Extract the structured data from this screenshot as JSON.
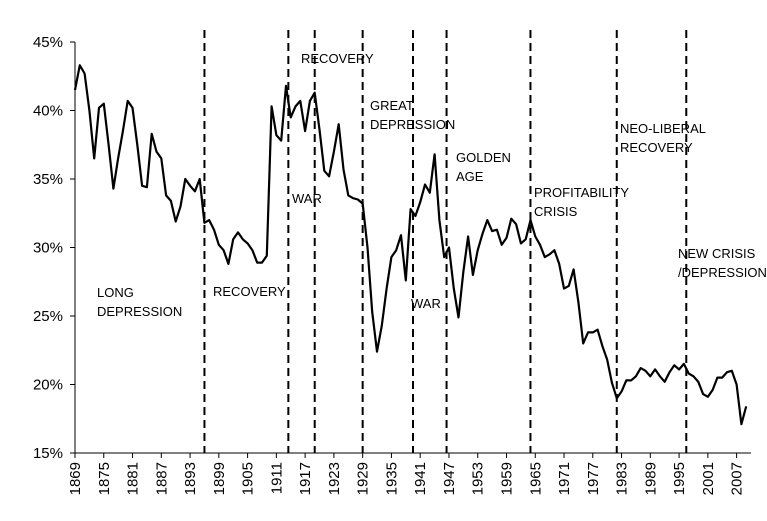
{
  "chart_data": {
    "type": "line",
    "x": [
      1869,
      1870,
      1871,
      1872,
      1873,
      1874,
      1875,
      1876,
      1877,
      1878,
      1879,
      1880,
      1881,
      1882,
      1883,
      1884,
      1885,
      1886,
      1887,
      1888,
      1889,
      1890,
      1891,
      1892,
      1893,
      1894,
      1895,
      1896,
      1897,
      1898,
      1899,
      1900,
      1901,
      1902,
      1903,
      1904,
      1905,
      1906,
      1907,
      1908,
      1909,
      1910,
      1911,
      1912,
      1913,
      1914,
      1915,
      1916,
      1917,
      1918,
      1919,
      1920,
      1921,
      1922,
      1923,
      1924,
      1925,
      1926,
      1927,
      1928,
      1929,
      1930,
      1931,
      1932,
      1933,
      1934,
      1935,
      1936,
      1937,
      1938,
      1939,
      1940,
      1941,
      1942,
      1943,
      1944,
      1945,
      1946,
      1947,
      1948,
      1949,
      1950,
      1951,
      1952,
      1953,
      1954,
      1955,
      1956,
      1957,
      1958,
      1959,
      1960,
      1961,
      1962,
      1963,
      1964,
      1965,
      1966,
      1967,
      1968,
      1969,
      1970,
      1971,
      1972,
      1973,
      1974,
      1975,
      1976,
      1977,
      1978,
      1979,
      1980,
      1981,
      1982,
      1983,
      1984,
      1985,
      1986,
      1987,
      1988,
      1989,
      1990,
      1991,
      1992,
      1993,
      1994,
      1995,
      1996,
      1997,
      1998,
      1999,
      2000,
      2001,
      2002,
      2003,
      2004,
      2005,
      2006,
      2007,
      2008,
      2009
    ],
    "values": [
      41.5,
      43.3,
      42.7,
      40,
      36.5,
      40.2,
      40.5,
      37.5,
      34.3,
      36.5,
      38.5,
      40.7,
      40.2,
      37.5,
      34.5,
      34.4,
      38.3,
      37,
      36.5,
      33.8,
      33.4,
      31.9,
      33,
      35,
      34.5,
      34.1,
      35,
      31.8,
      32,
      31.3,
      30.2,
      29.8,
      28.8,
      30.6,
      31.1,
      30.6,
      30.3,
      29.8,
      28.9,
      28.9,
      29.4,
      40.3,
      38.2,
      37.8,
      41.8,
      39.5,
      40.3,
      40.7,
      38.5,
      40.7,
      41.3,
      38.6,
      35.6,
      35.2,
      37,
      39,
      35.7,
      33.8,
      33.6,
      33.5,
      33.2,
      30,
      25.3,
      22.4,
      24.3,
      27,
      29.3,
      29.8,
      30.9,
      27.6,
      32.8,
      32.3,
      33.3,
      34.6,
      34,
      36.8,
      32,
      29.3,
      30,
      27,
      24.9,
      28.2,
      30.8,
      28,
      29.8,
      31,
      32,
      31.2,
      31.3,
      30.2,
      30.7,
      32.1,
      31.7,
      30.3,
      30.6,
      32,
      30.8,
      30.2,
      29.3,
      29.5,
      29.8,
      28.8,
      27,
      27.2,
      28.4,
      26,
      23,
      23.8,
      23.8,
      24,
      22.8,
      21.8,
      20.1,
      19,
      19.5,
      20.3,
      20.3,
      20.6,
      21.2,
      21,
      20.6,
      21.1,
      20.6,
      20.2,
      20.9,
      21.4,
      21.1,
      21.5,
      20.8,
      20.6,
      20.2,
      19.3,
      19.1,
      19.6,
      20.5,
      20.5,
      20.9,
      21,
      20,
      17.1,
      18.4
    ],
    "color": "#000000",
    "xlim": [
      1869,
      2010
    ],
    "xticks": [
      1869,
      1875,
      1881,
      1887,
      1893,
      1899,
      1905,
      1911,
      1917,
      1923,
      1929,
      1935,
      1941,
      1947,
      1953,
      1959,
      1965,
      1971,
      1977,
      1983,
      1989,
      1995,
      2001,
      2007
    ],
    "ylim": [
      15,
      45
    ],
    "yticks": [
      {
        "value": 15,
        "label": "15%"
      },
      {
        "value": 20,
        "label": "20%"
      },
      {
        "value": 25,
        "label": "25%"
      },
      {
        "value": 30,
        "label": "30%"
      },
      {
        "value": 35,
        "label": "35%"
      },
      {
        "value": 40,
        "label": "40%"
      },
      {
        "value": 45,
        "label": "45%"
      }
    ],
    "dividers": [
      1896,
      1913.5,
      1919,
      1929,
      1939.5,
      1946.5,
      1964,
      1982,
      1996.5
    ],
    "annotations": [
      {
        "lines": [
          "LONG",
          "DEPRESSION"
        ]
      },
      {
        "lines": [
          "RECOVERY"
        ]
      },
      {
        "lines": [
          "WAR"
        ]
      },
      {
        "lines": [
          "RECOVERY"
        ]
      },
      {
        "lines": [
          "GREAT",
          "DEPRESSION"
        ]
      },
      {
        "lines": [
          "WAR"
        ]
      },
      {
        "lines": [
          "GOLDEN",
          "AGE"
        ]
      },
      {
        "lines": [
          "PROFITABILITY",
          "CRISIS"
        ]
      },
      {
        "lines": [
          "NEO-LIBERAL",
          "RECOVERY"
        ]
      },
      {
        "lines": [
          "NEW CRISIS",
          "/DEPRESSION"
        ]
      }
    ]
  }
}
